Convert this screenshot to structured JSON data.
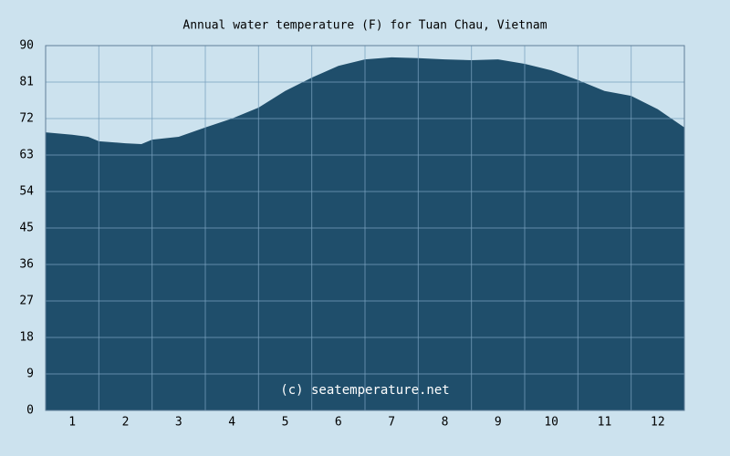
{
  "chart_data": {
    "type": "area",
    "title": "Annual water temperature (F) for Tuan Chau, Vietnam",
    "watermark": "(c) seatemperature.net",
    "x": [
      0.5,
      1.0,
      1.3,
      1.5,
      2.0,
      2.3,
      2.5,
      3.0,
      3.5,
      4.0,
      4.5,
      5.0,
      5.5,
      6.0,
      6.5,
      7.0,
      7.5,
      8.0,
      8.5,
      9.0,
      9.5,
      10.0,
      10.5,
      11.0,
      11.5,
      12.0,
      12.5
    ],
    "values": [
      68.6,
      68.0,
      67.5,
      66.4,
      65.9,
      65.7,
      66.8,
      67.5,
      69.8,
      72.0,
      74.7,
      78.8,
      82.1,
      85.0,
      86.6,
      87.1,
      86.9,
      86.6,
      86.4,
      86.6,
      85.5,
      83.9,
      81.5,
      78.8,
      77.6,
      74.3,
      69.8
    ],
    "color": "#1f4e6b",
    "xlim": [
      0.5,
      12.5
    ],
    "xticks": [
      1,
      2,
      3,
      4,
      5,
      6,
      7,
      8,
      9,
      10,
      11,
      12
    ],
    "ylim": [
      0,
      90
    ],
    "yticks": [
      0,
      9,
      18,
      27,
      36,
      45,
      54,
      63,
      72,
      81,
      90
    ],
    "grid": true
  }
}
